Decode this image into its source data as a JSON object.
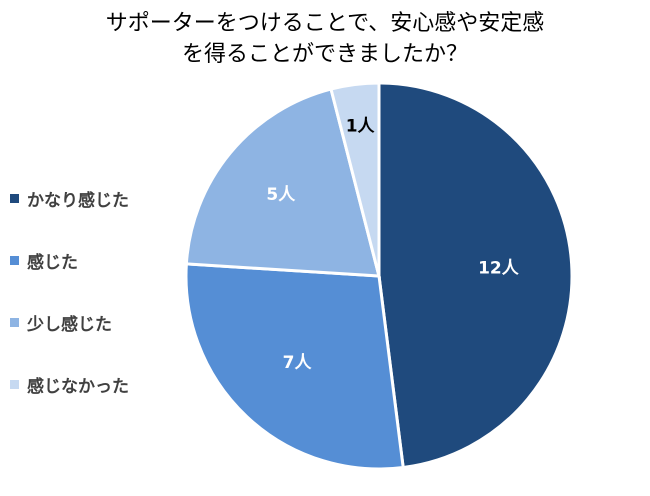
{
  "title": {
    "line1": "サポーターをつけることで、安心感や安定感",
    "line2": "を得ることができましたか？"
  },
  "chart_data": {
    "type": "pie",
    "title": "サポーターをつけることで、安心感や安定感を得ることができましたか？",
    "categories": [
      "かなり感じた",
      "感じた",
      "少し感じた",
      "感じなかった"
    ],
    "values": [
      12,
      7,
      5,
      1
    ],
    "data_labels": [
      "12人",
      "7人",
      "5人",
      "1人"
    ],
    "colors": [
      "#1F4A7D",
      "#558ED5",
      "#8EB4E3",
      "#C6D9F1"
    ],
    "label_colors": [
      "#FFFFFF",
      "#FFFFFF",
      "#FFFFFF",
      "#000000"
    ],
    "legend_position": "left",
    "start": "12 o'clock",
    "direction": "clockwise"
  }
}
